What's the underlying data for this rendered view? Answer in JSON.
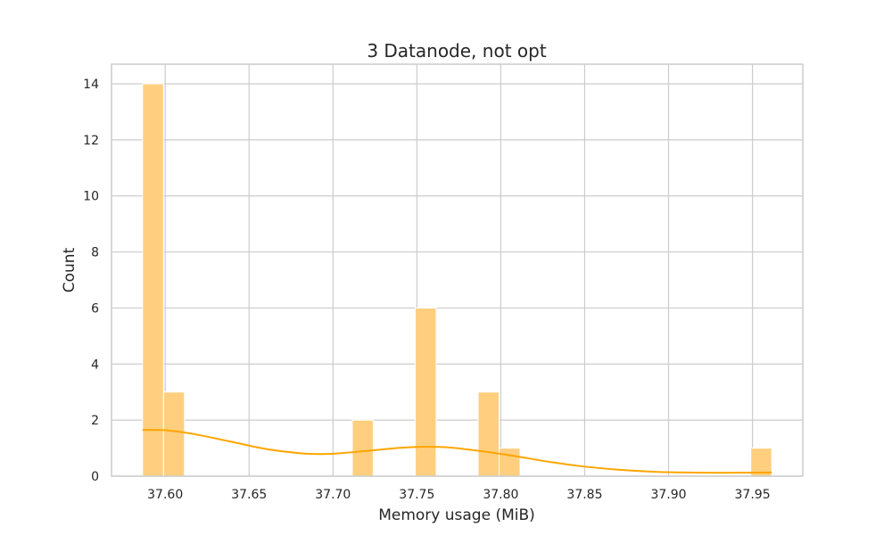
{
  "chart_data": {
    "type": "bar",
    "chart_kind": "histogram-with-kde",
    "title": "3 Datanode, not opt",
    "xlabel": "Memory usage (MiB)",
    "ylabel": "Count",
    "xlim": [
      37.568,
      37.98
    ],
    "ylim": [
      0,
      14.7
    ],
    "xticks": [
      37.6,
      37.65,
      37.7,
      37.75,
      37.8,
      37.85,
      37.9,
      37.95
    ],
    "xtick_labels": [
      "37.60",
      "37.65",
      "37.70",
      "37.75",
      "37.80",
      "37.85",
      "37.90",
      "37.95"
    ],
    "yticks": [
      0,
      2,
      4,
      6,
      8,
      10,
      12,
      14
    ],
    "ytick_labels": [
      "0",
      "2",
      "4",
      "6",
      "8",
      "10",
      "12",
      "14"
    ],
    "grid": true,
    "bins": [
      {
        "x0": 37.5865,
        "x1": 37.599,
        "count": 14
      },
      {
        "x0": 37.599,
        "x1": 37.6115,
        "count": 3
      },
      {
        "x0": 37.7115,
        "x1": 37.724,
        "count": 2
      },
      {
        "x0": 37.749,
        "x1": 37.7615,
        "count": 6
      },
      {
        "x0": 37.7865,
        "x1": 37.799,
        "count": 3
      },
      {
        "x0": 37.799,
        "x1": 37.8115,
        "count": 1
      },
      {
        "x0": 37.949,
        "x1": 37.9615,
        "count": 1
      }
    ],
    "kde": {
      "x": [
        37.5865,
        37.6,
        37.61,
        37.62,
        37.64,
        37.66,
        37.68,
        37.69,
        37.7,
        37.72,
        37.74,
        37.755,
        37.77,
        37.79,
        37.81,
        37.83,
        37.85,
        37.87,
        37.89,
        37.91,
        37.93,
        37.9615
      ],
      "y": [
        1.65,
        1.64,
        1.57,
        1.47,
        1.22,
        0.97,
        0.82,
        0.79,
        0.8,
        0.9,
        1.01,
        1.05,
        1.02,
        0.88,
        0.7,
        0.5,
        0.34,
        0.23,
        0.16,
        0.13,
        0.12,
        0.13
      ]
    },
    "colors": {
      "bar_fill": "#ffcf7f",
      "kde_line": "#ffa500"
    }
  }
}
